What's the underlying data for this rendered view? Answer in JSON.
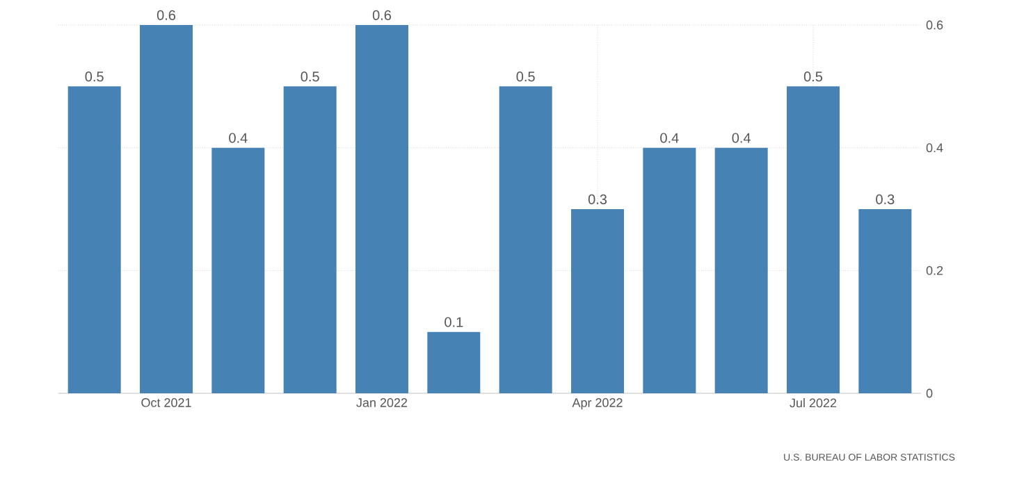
{
  "chart_data": {
    "type": "bar",
    "categories": [
      null,
      "Oct 2021",
      null,
      null,
      "Jan 2022",
      null,
      null,
      "Apr 2022",
      null,
      null,
      "Jul 2022",
      null
    ],
    "values": [
      0.5,
      0.6,
      0.4,
      0.5,
      0.6,
      0.1,
      0.5,
      0.3,
      0.4,
      0.4,
      0.5,
      0.3
    ],
    "color": "#4682b4",
    "ylim": [
      0,
      0.6
    ],
    "yticks": [
      0,
      0.2,
      0.4,
      0.6
    ],
    "grid": true,
    "data_labels": true,
    "annotations": [
      "U.S. BUREAU OF LABOR STATISTICS"
    ]
  }
}
